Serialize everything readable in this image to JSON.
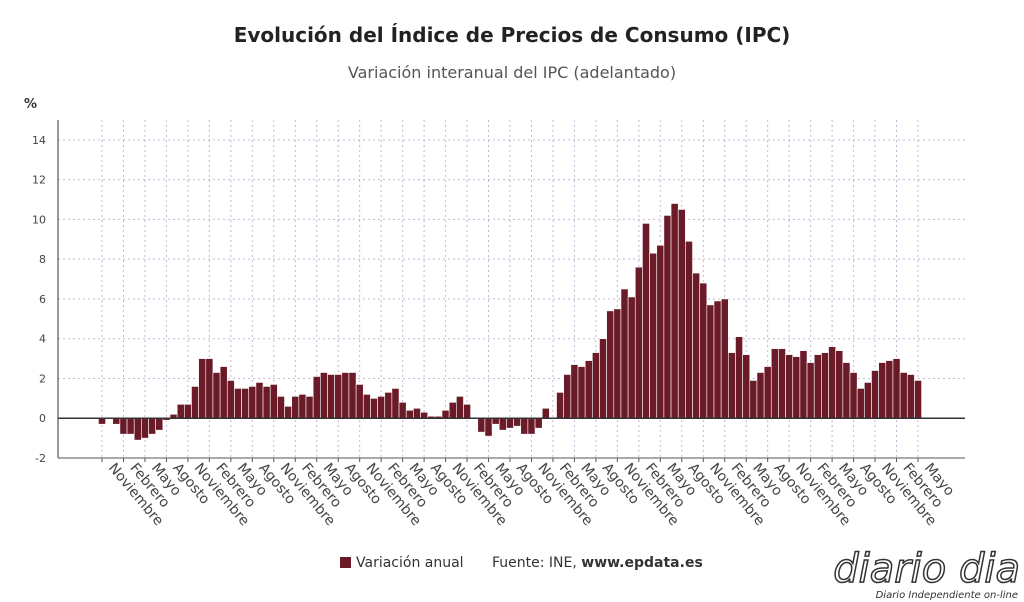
{
  "chart_data": {
    "type": "bar",
    "title": "Evolución del Índice de Precios de Consumo (IPC)",
    "subtitle": "Variación interanual del IPC (adelantado)",
    "y_label": "%",
    "categories": [
      "Noviembre",
      null,
      null,
      "Febrero",
      null,
      null,
      "Mayo",
      null,
      null,
      "Agosto",
      null,
      null,
      "Noviembre",
      null,
      null,
      "Febrero",
      null,
      null,
      "Mayo",
      null,
      null,
      "Agosto",
      null,
      null,
      "Noviembre",
      null,
      null,
      "Febrero",
      null,
      null,
      "Mayo",
      null,
      null,
      "Agosto",
      null,
      null,
      "Noviembre",
      null,
      null,
      "Febrero",
      null,
      null,
      "Mayo",
      null,
      null,
      "Agosto",
      null,
      null,
      "Noviembre",
      null,
      null,
      "Febrero",
      null,
      null,
      "Mayo",
      null,
      null,
      "Agosto",
      null,
      null,
      "Noviembre",
      null,
      null,
      "Febrero",
      null,
      null,
      "Mayo",
      null,
      null,
      "Agosto",
      null,
      null,
      "Noviembre",
      null,
      null,
      "Febrero",
      null,
      null,
      "Mayo",
      null,
      null,
      "Agosto",
      null,
      null,
      "Noviembre",
      null,
      null,
      "Febrero",
      null,
      null,
      "Mayo",
      null,
      null,
      "Agosto",
      null,
      null,
      "Noviembre",
      null,
      null,
      "Febrero",
      null,
      null,
      "Mayo",
      null,
      null,
      "Agosto",
      null,
      null,
      "Noviembre",
      null,
      null,
      "Febrero",
      null,
      null,
      "Mayo"
    ],
    "series": [
      {
        "name": "Variación anual",
        "color": "#6b1a28",
        "values": [
          -0.3,
          0.0,
          -0.3,
          -0.8,
          -0.8,
          -1.1,
          -1.0,
          -0.8,
          -0.6,
          -0.1,
          0.2,
          0.7,
          0.7,
          1.6,
          3.0,
          3.0,
          2.3,
          2.6,
          1.9,
          1.5,
          1.5,
          1.6,
          1.8,
          1.6,
          1.7,
          1.1,
          0.6,
          1.1,
          1.2,
          1.1,
          2.1,
          2.3,
          2.2,
          2.2,
          2.3,
          2.3,
          1.7,
          1.2,
          1.0,
          1.1,
          1.3,
          1.5,
          0.8,
          0.4,
          0.5,
          0.3,
          0.1,
          0.1,
          0.4,
          0.8,
          1.1,
          0.7,
          0.0,
          -0.7,
          -0.9,
          -0.3,
          -0.6,
          -0.5,
          -0.4,
          -0.8,
          -0.8,
          -0.5,
          0.5,
          0.0,
          1.3,
          2.2,
          2.7,
          2.6,
          2.9,
          3.3,
          4.0,
          5.4,
          5.5,
          6.5,
          6.1,
          7.6,
          9.8,
          8.3,
          8.7,
          10.2,
          10.8,
          10.5,
          8.9,
          7.3,
          6.8,
          5.7,
          5.9,
          6.0,
          3.3,
          4.1,
          3.2,
          1.9,
          2.3,
          2.6,
          3.5,
          3.5,
          3.2,
          3.1,
          3.4,
          2.8,
          3.2,
          3.3,
          3.6,
          3.4,
          2.8,
          2.3,
          1.5,
          1.8,
          2.4,
          2.8,
          2.9,
          3.0,
          2.3,
          2.2,
          1.9
        ]
      }
    ],
    "ylim": [
      -2,
      15
    ],
    "yticks": [
      -2,
      0,
      2,
      4,
      6,
      8,
      10,
      12,
      14
    ],
    "grid": true,
    "source_label": "Fuente: INE,",
    "source_site": "www.epdata.es",
    "watermark": "diario dia",
    "watermark_tagline": "Diario Independiente on-line"
  }
}
